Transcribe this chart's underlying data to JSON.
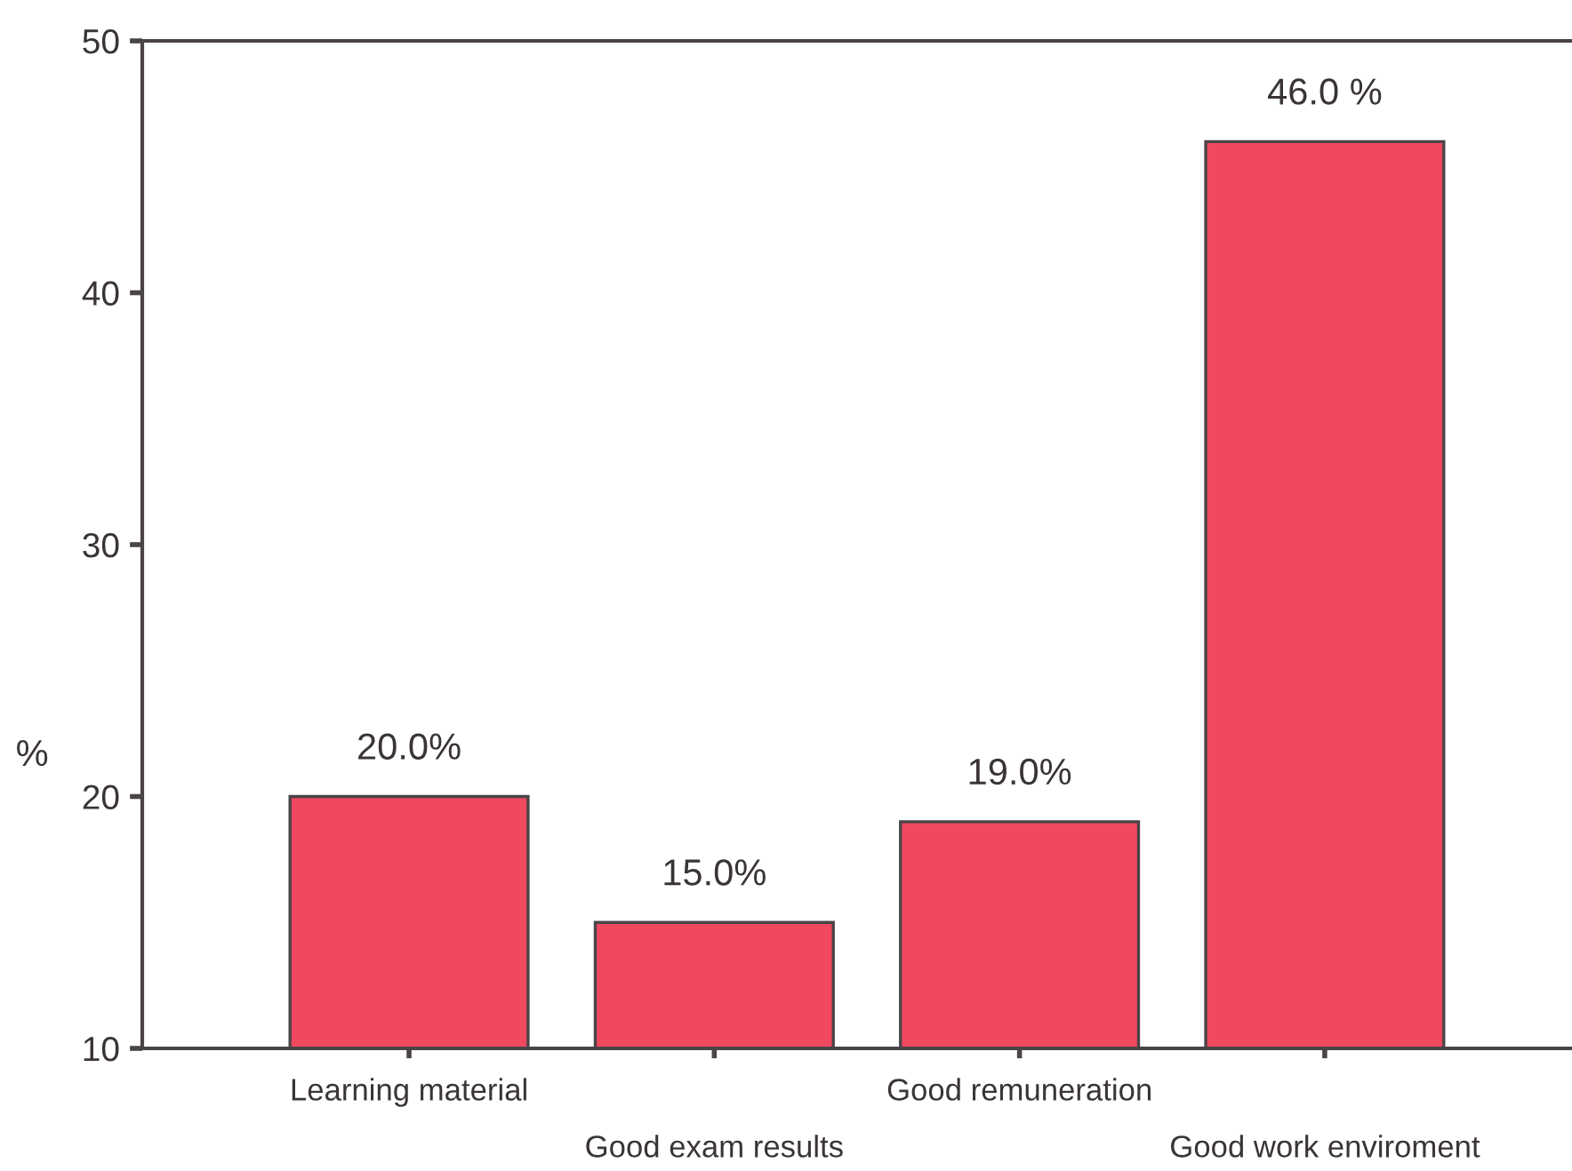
{
  "chart_data": {
    "type": "bar",
    "categories": [
      "Learning material",
      "Good exam results",
      "Good remuneration",
      "Good work enviroment"
    ],
    "values": [
      20,
      15,
      19,
      46
    ],
    "value_labels": [
      "20.0%",
      "15.0%",
      "19.0%",
      "46.0 %"
    ],
    "color": "#f0485e",
    "ylabel": "%",
    "ylim": [
      10,
      50
    ],
    "yticks": [
      10,
      20,
      30,
      40,
      50
    ],
    "grid": false
  }
}
